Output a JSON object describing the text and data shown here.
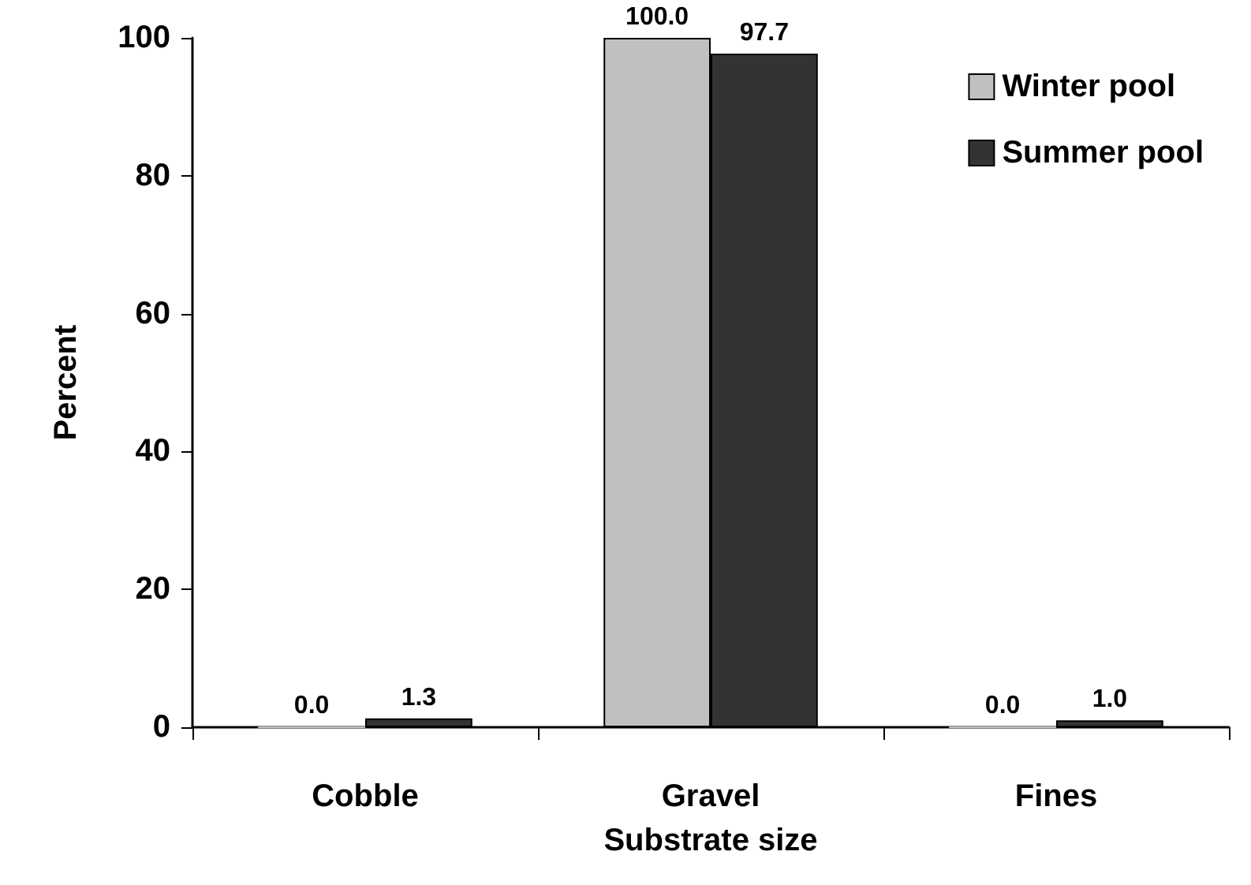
{
  "chart_data": {
    "type": "bar",
    "xlabel": "Substrate size",
    "ylabel": "Percent",
    "categories": [
      "Cobble",
      "Gravel",
      "Fines"
    ],
    "series": [
      {
        "name": "Winter pool",
        "color": "#c0c0c0",
        "values": [
          0,
          100,
          0
        ],
        "value_labels": [
          "0.0",
          "100.0",
          "0.0"
        ]
      },
      {
        "name": "Summer pool",
        "color": "#333333",
        "values": [
          1.3,
          97.7,
          1.0
        ],
        "value_labels": [
          "1.3",
          "97.7",
          "1.0"
        ]
      }
    ],
    "ylim": [
      0,
      100
    ],
    "yticks": [
      0,
      20,
      40,
      60,
      80,
      100
    ],
    "grid": false,
    "legend": "top right"
  }
}
